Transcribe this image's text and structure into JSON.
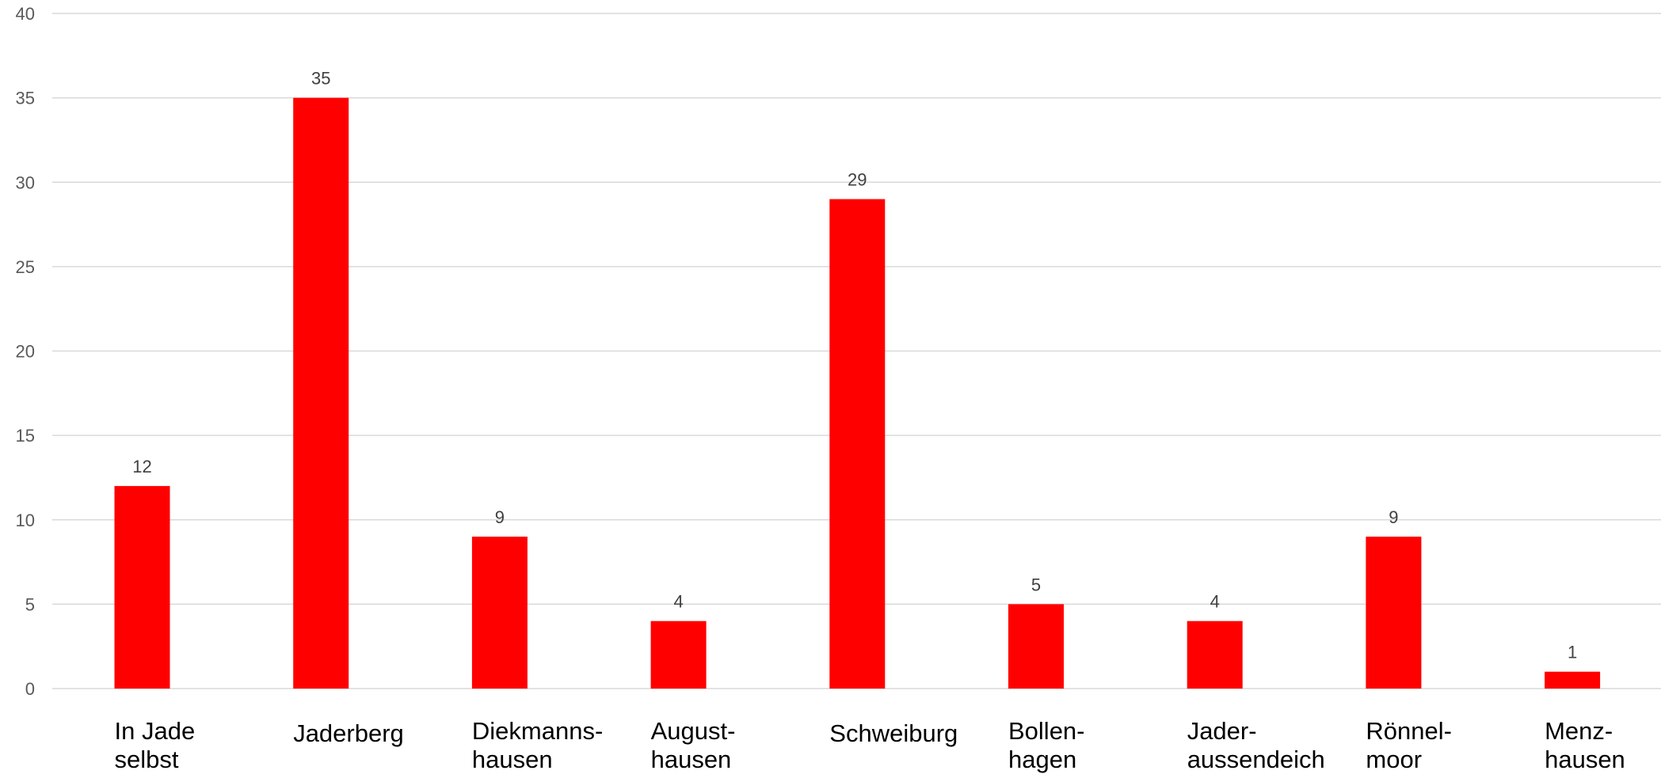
{
  "chart_data": {
    "type": "bar",
    "categories": [
      [
        "In Jade",
        "selbst"
      ],
      [
        "Jaderberg"
      ],
      [
        "Diekmanns-",
        "hausen"
      ],
      [
        "August-",
        "hausen"
      ],
      [
        "Schweiburg"
      ],
      [
        "Bollen-",
        "hagen"
      ],
      [
        "Jader-",
        "aussendeich"
      ],
      [
        "Rönnel-",
        "moor"
      ],
      [
        "Menz-",
        "hausen"
      ]
    ],
    "values": [
      12,
      35,
      9,
      4,
      29,
      5,
      4,
      9,
      1
    ],
    "ylim": [
      0,
      40
    ],
    "yticks": [
      "0",
      "5",
      "10",
      "15",
      "20",
      "25",
      "30",
      "35",
      "40"
    ],
    "grid": true,
    "data_labels": true,
    "bar_color": "#ff0000",
    "title": "",
    "xlabel": "",
    "ylabel": ""
  }
}
